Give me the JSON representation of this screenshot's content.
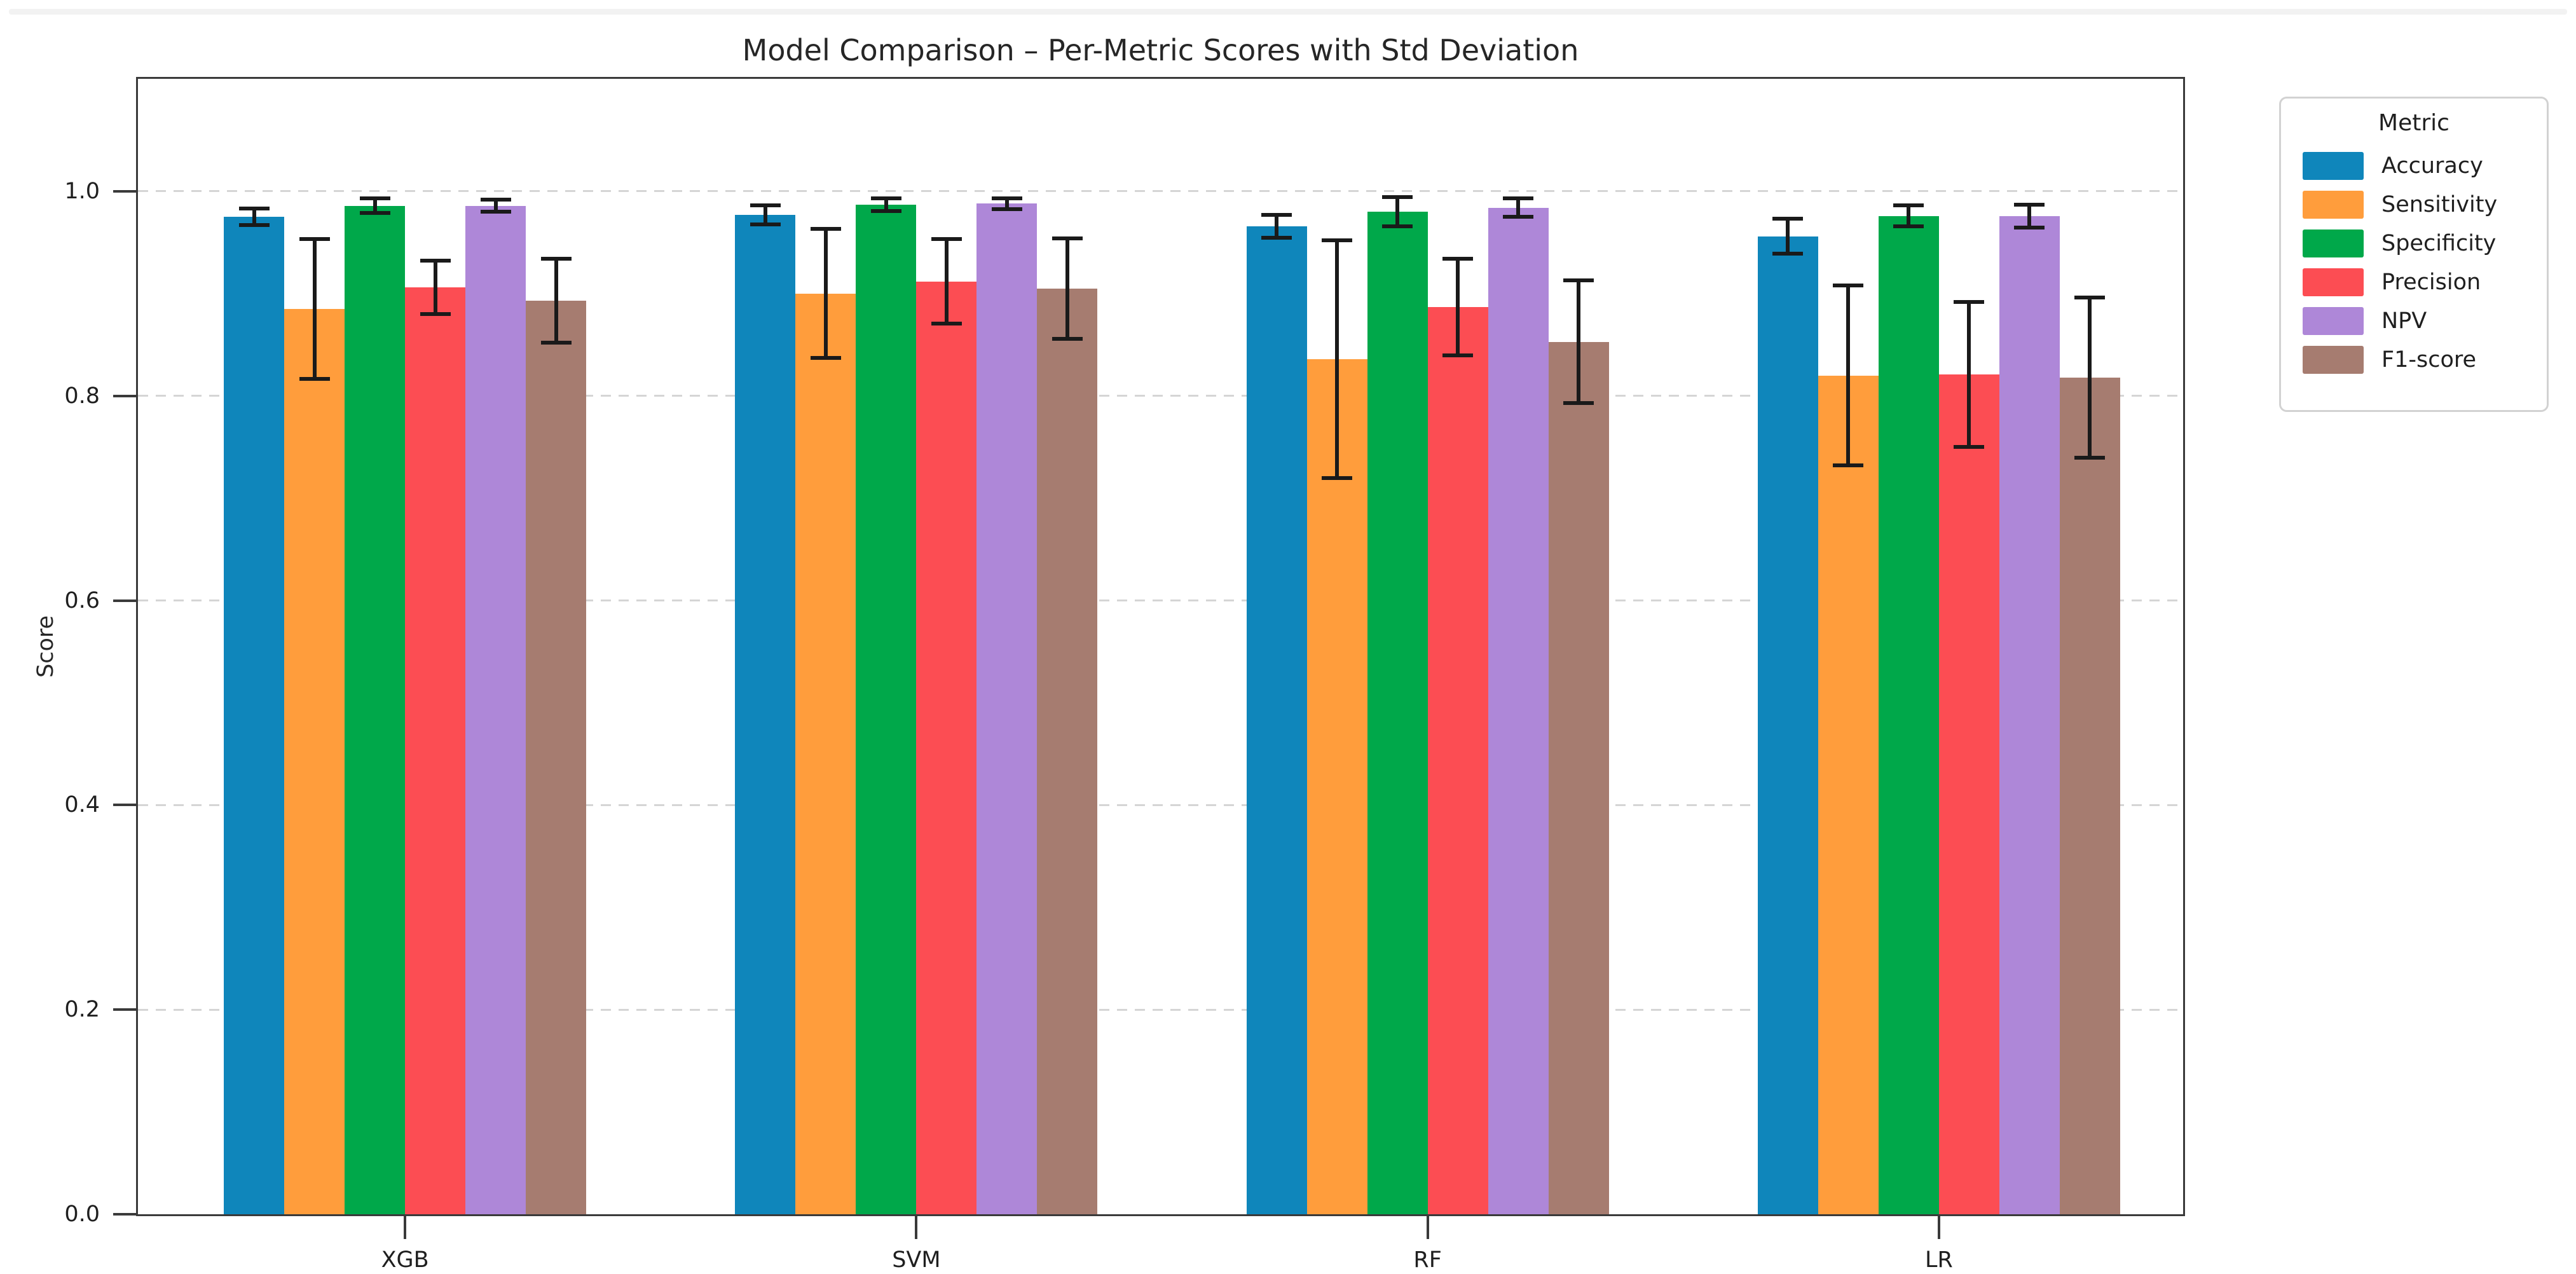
{
  "page": {
    "background": "#ffffff",
    "top_strip_color": "#f2f2f2"
  },
  "chart_data": {
    "type": "bar",
    "title": "Model Comparison – Per-Metric Scores with Std Deviation",
    "xlabel": "",
    "ylabel": "Score",
    "categories": [
      "XGB",
      "SVM",
      "RF",
      "LR"
    ],
    "ylim": [
      0,
      1.11
    ],
    "yticks": [
      "0.0",
      "0.2",
      "0.4",
      "0.6",
      "0.8",
      "1.0"
    ],
    "grid": "horizontal dashed lines at each 0.2",
    "error_bars": "black std-deviation bars with caps",
    "legend": {
      "title": "Metric",
      "position": "outside upper right"
    },
    "axis_colors": {
      "spine": "#3a3a3a",
      "grid": "#d5d5d5",
      "text": "#1f1f1f",
      "error_bar": "#1a1a1a"
    },
    "series": [
      {
        "name": "Accuracy",
        "color": "#0f86bb",
        "values": [
          0.975,
          0.977,
          0.966,
          0.956
        ],
        "std": [
          0.01,
          0.011,
          0.013,
          0.019
        ]
      },
      {
        "name": "Sensitivity",
        "color": "#ff9d3c",
        "values": [
          0.885,
          0.9,
          0.836,
          0.82
        ],
        "std": [
          0.07,
          0.065,
          0.118,
          0.09
        ]
      },
      {
        "name": "Specificity",
        "color": "#00a84a",
        "values": [
          0.986,
          0.987,
          0.98,
          0.976
        ],
        "std": [
          0.009,
          0.008,
          0.016,
          0.012
        ]
      },
      {
        "name": "Precision",
        "color": "#fc4d53",
        "values": [
          0.906,
          0.912,
          0.887,
          0.821
        ],
        "std": [
          0.028,
          0.043,
          0.049,
          0.073
        ]
      },
      {
        "name": "NPV",
        "color": "#ae87d8",
        "values": [
          0.986,
          0.988,
          0.984,
          0.976
        ],
        "std": [
          0.008,
          0.007,
          0.011,
          0.013
        ]
      },
      {
        "name": "F1-score",
        "color": "#a67c70",
        "values": [
          0.893,
          0.905,
          0.853,
          0.818
        ],
        "std": [
          0.043,
          0.051,
          0.062,
          0.08
        ]
      }
    ]
  }
}
